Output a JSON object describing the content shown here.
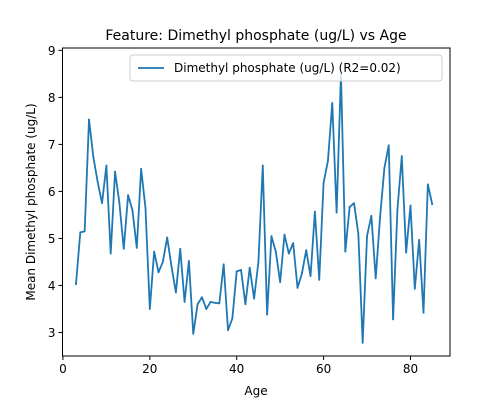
{
  "chart_data": {
    "type": "line",
    "title": "Feature: Dimethyl phosphate (ug/L) vs Age",
    "xlabel": "Age",
    "ylabel": "Mean Dimethyl phosphate (ug/L)",
    "xlim": [
      -0.1,
      89.1
    ],
    "ylim": [
      2.5,
      9.05
    ],
    "xticks": [
      0,
      20,
      40,
      60,
      80
    ],
    "yticks": [
      3,
      4,
      5,
      6,
      7,
      8,
      9
    ],
    "legend_position": "upper right",
    "colors": {
      "series": "#1f77b4"
    },
    "series": [
      {
        "name": "Dimethyl phosphate (ug/L) (R2=0.02)",
        "x": [
          3,
          4,
          5,
          6,
          7,
          8,
          9,
          10,
          11,
          12,
          13,
          14,
          15,
          16,
          17,
          18,
          19,
          20,
          21,
          22,
          23,
          24,
          25,
          26,
          27,
          28,
          29,
          30,
          31,
          32,
          33,
          34,
          35,
          36,
          37,
          38,
          39,
          40,
          41,
          42,
          43,
          44,
          45,
          46,
          47,
          48,
          49,
          50,
          51,
          52,
          53,
          54,
          55,
          56,
          57,
          58,
          59,
          60,
          61,
          62,
          63,
          64,
          65,
          66,
          67,
          68,
          69,
          70,
          71,
          72,
          73,
          74,
          75,
          76,
          77,
          78,
          79,
          80,
          81,
          82,
          83,
          84,
          85
        ],
        "y": [
          4.03,
          5.13,
          5.15,
          7.53,
          6.73,
          6.2,
          5.75,
          6.55,
          4.68,
          6.42,
          5.75,
          4.78,
          5.92,
          5.6,
          4.8,
          6.48,
          5.65,
          3.5,
          4.72,
          4.28,
          4.5,
          5.02,
          4.4,
          3.85,
          4.78,
          3.65,
          4.52,
          2.97,
          3.6,
          3.75,
          3.5,
          3.65,
          3.63,
          3.62,
          4.45,
          3.05,
          3.3,
          4.3,
          4.33,
          3.6,
          4.38,
          3.72,
          4.5,
          6.55,
          3.38,
          5.05,
          4.72,
          4.07,
          5.08,
          4.68,
          4.9,
          3.95,
          4.25,
          4.75,
          4.2,
          5.57,
          4.12,
          6.18,
          6.65,
          7.88,
          5.55,
          8.5,
          4.72,
          5.67,
          5.75,
          5.1,
          2.78,
          5.05,
          5.48,
          4.15,
          5.45,
          6.5,
          6.98,
          3.28,
          5.62,
          6.75,
          4.7,
          5.7,
          3.93,
          4.97,
          3.42,
          6.15,
          5.73
        ]
      }
    ]
  }
}
